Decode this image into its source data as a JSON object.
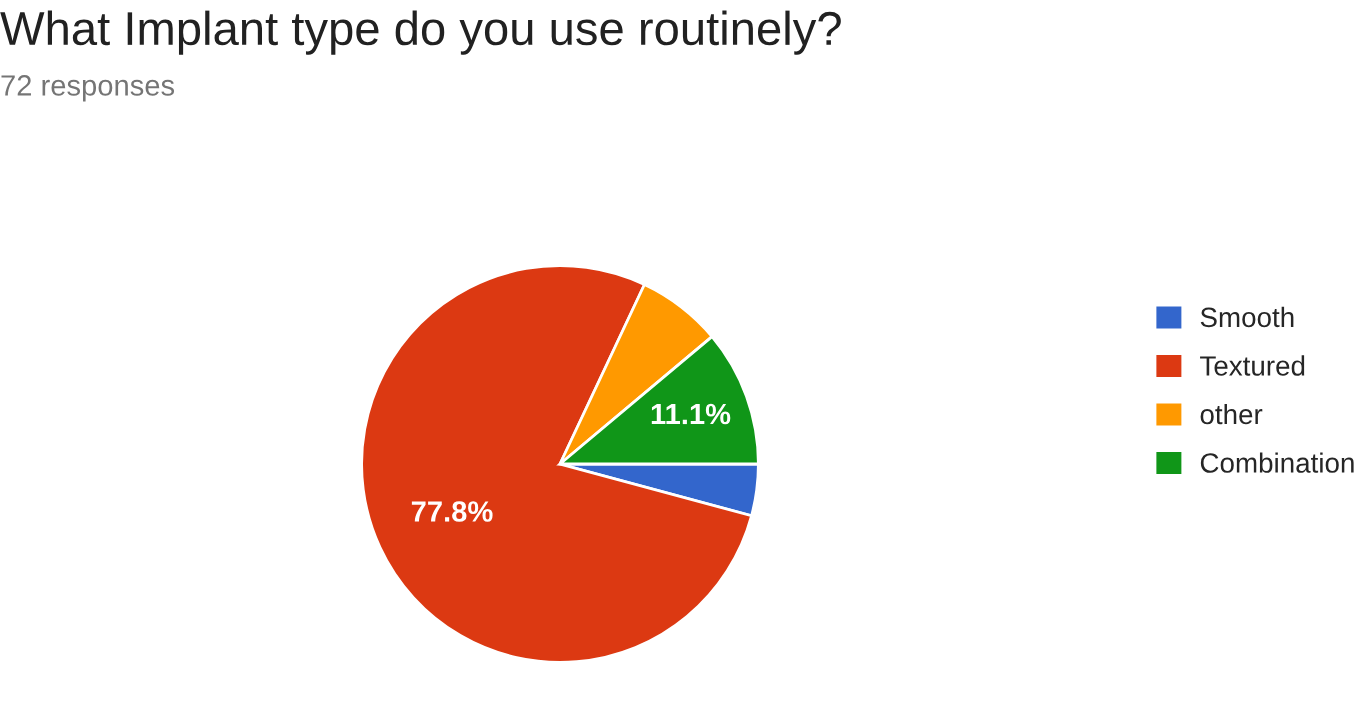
{
  "chart_data": {
    "type": "pie",
    "title": "What Implant type do you use routinely?",
    "subtitle": "72 responses",
    "categories": [
      "Smooth",
      "Textured",
      "other",
      "Combination"
    ],
    "values": [
      4.2,
      77.8,
      6.9,
      11.1
    ],
    "value_labels": [
      null,
      "77.8%",
      null,
      "11.1%"
    ],
    "colors": [
      "#3366cc",
      "#dc3912",
      "#ff9900",
      "#109618"
    ],
    "legend": "right"
  }
}
